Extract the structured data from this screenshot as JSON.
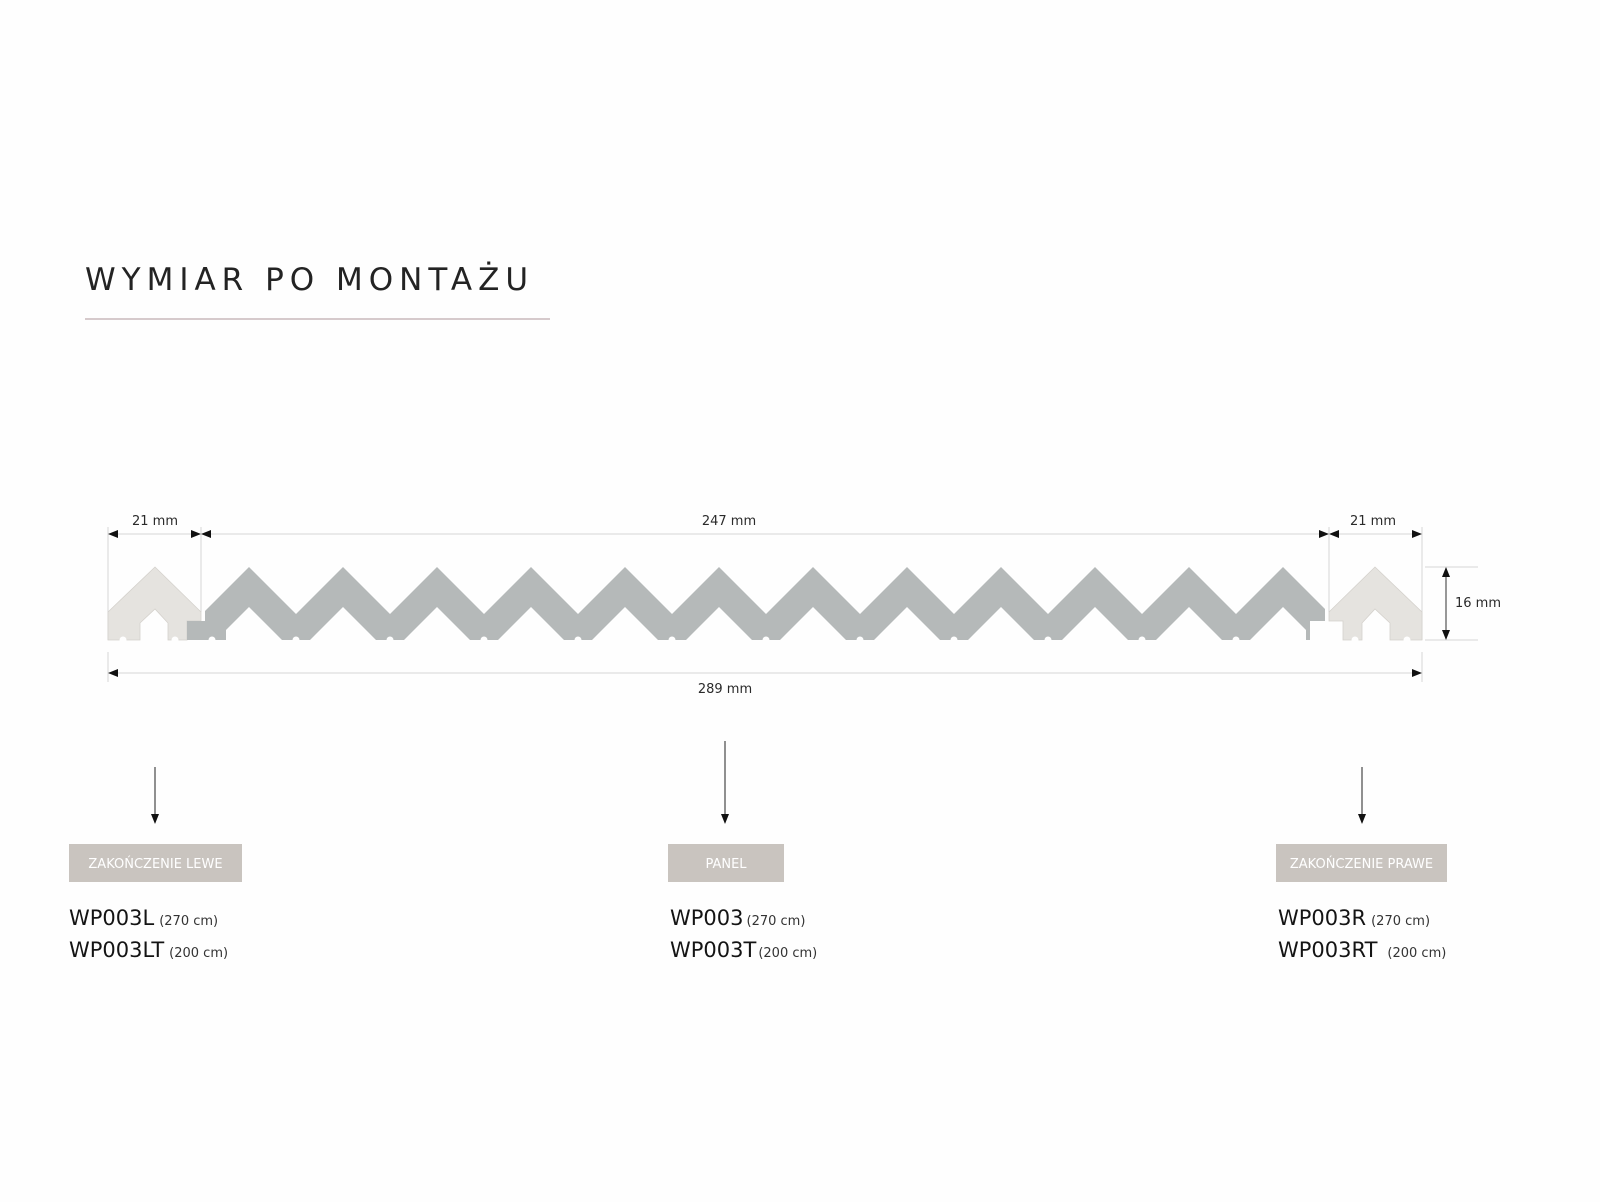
{
  "title": "WYMIAR PO MONTAŻU",
  "colors": {
    "panel": "#b5b9b9",
    "end_cap": "#e5e3df",
    "label_box": "#c9c4bf",
    "title_rule": "#c8b8bc",
    "dimension_line": "#d8d8d8"
  },
  "dimensions": {
    "left_width": "21 mm",
    "panel_width": "247 mm",
    "right_width": "21 mm",
    "height": "16 mm",
    "total_width": "289 mm"
  },
  "products": [
    {
      "label": "ZAKOŃCZENIE LEWE",
      "codes": [
        {
          "code": "WP003L",
          "length": "(270 cm)"
        },
        {
          "code": "WP003LT",
          "length": "(200 cm)"
        }
      ]
    },
    {
      "label": "PANEL",
      "codes": [
        {
          "code": "WP003",
          "length": "(270 cm)"
        },
        {
          "code": "WP003T",
          "length": "(200 cm)"
        }
      ]
    },
    {
      "label": "ZAKOŃCZENIE PRAWE",
      "codes": [
        {
          "code": "WP003R",
          "length": "(270 cm)"
        },
        {
          "code": "WP003RT",
          "length": "(200 cm)"
        }
      ]
    }
  ]
}
